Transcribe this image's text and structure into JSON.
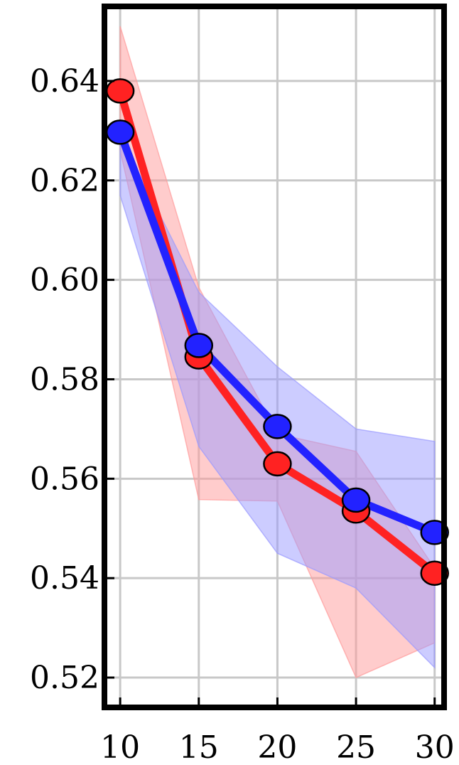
{
  "chart_data": {
    "type": "line",
    "title": "",
    "xlabel": "",
    "ylabel": "",
    "x": [
      10,
      15,
      20,
      25,
      30
    ],
    "xticks": [
      "10",
      "15",
      "20",
      "25",
      "30"
    ],
    "yticks": [
      "0.52",
      "0.54",
      "0.56",
      "0.58",
      "0.60",
      "0.62",
      "0.64"
    ],
    "xlim": [
      9,
      30.6
    ],
    "ylim": [
      0.514,
      0.655
    ],
    "grid": true,
    "legend": "none",
    "series": [
      {
        "color": "#ff2222",
        "band_color": "#ff9a9a",
        "values": [
          0.638,
          0.5845,
          0.563,
          0.5535,
          0.541
        ],
        "upper": [
          0.651,
          0.5985,
          0.569,
          0.5655,
          0.542
        ],
        "lower": [
          0.626,
          0.5558,
          0.5555,
          0.52,
          0.527
        ]
      },
      {
        "color": "#2222ff",
        "band_color": "#9a9aff",
        "values": [
          0.6297,
          0.5868,
          0.5705,
          0.5557,
          0.5492
        ],
        "upper": [
          0.629,
          0.5975,
          0.5825,
          0.57,
          0.5675
        ],
        "lower": [
          0.617,
          0.5665,
          0.545,
          0.538,
          0.522
        ]
      }
    ]
  }
}
